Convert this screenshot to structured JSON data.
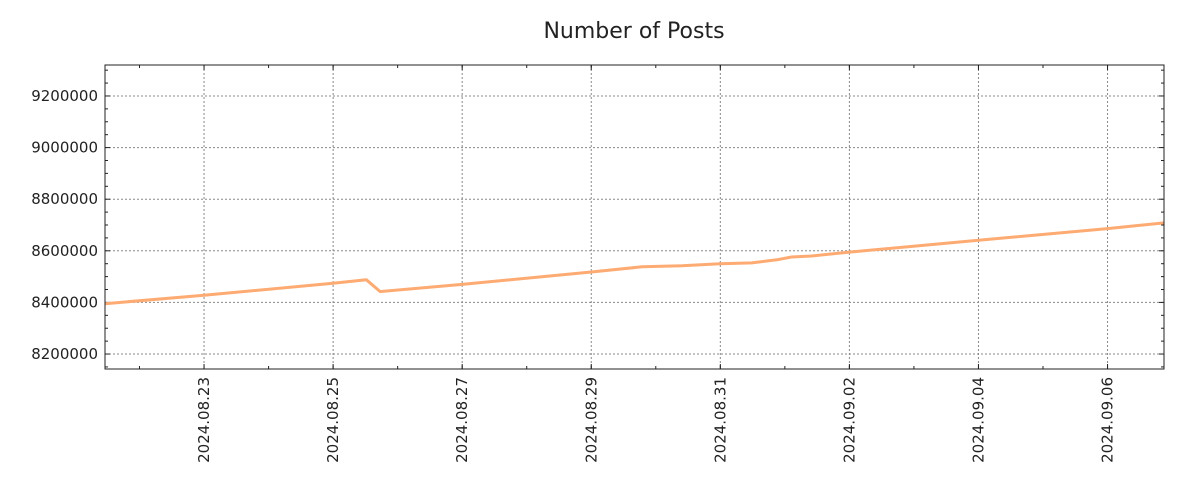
{
  "chart_data": {
    "type": "line",
    "title": "Number of Posts",
    "xlabel": "",
    "ylabel": "",
    "grid": true,
    "legend": "none",
    "line_color": "#fdab72",
    "xlim": [
      "2024-08-21T11:10",
      "2024-09-06T21:00"
    ],
    "ylim": [
      8142000,
      9320000
    ],
    "x_ticks": [
      {
        "label": "2024.08.23",
        "date": "2024-08-23T00:00"
      },
      {
        "label": "2024.08.25",
        "date": "2024-08-25T00:00"
      },
      {
        "label": "2024.08.27",
        "date": "2024-08-27T00:00"
      },
      {
        "label": "2024.08.29",
        "date": "2024-08-29T00:00"
      },
      {
        "label": "2024.08.31",
        "date": "2024-08-31T00:00"
      },
      {
        "label": "2024.09.02",
        "date": "2024-09-02T00:00"
      },
      {
        "label": "2024.09.04",
        "date": "2024-09-04T00:00"
      },
      {
        "label": "2024.09.06",
        "date": "2024-09-06T00:00"
      }
    ],
    "y_ticks": [
      8200000,
      8400000,
      8600000,
      8800000,
      9000000,
      9200000
    ],
    "series": [
      {
        "name": "Number of Posts",
        "points": [
          [
            "2024-08-21T11:10",
            8395000
          ],
          [
            "2024-08-23T00:00",
            8428000
          ],
          [
            "2024-08-25T00:00",
            8474000
          ],
          [
            "2024-08-25T12:20",
            8488000
          ],
          [
            "2024-08-25T17:30",
            8442000
          ],
          [
            "2024-08-27T00:00",
            8470000
          ],
          [
            "2024-08-29T00:00",
            8518000
          ],
          [
            "2024-08-29T19:00",
            8538000
          ],
          [
            "2024-08-30T09:40",
            8542000
          ],
          [
            "2024-08-31T00:00",
            8550000
          ],
          [
            "2024-08-31T11:40",
            8553000
          ],
          [
            "2024-08-31T21:00",
            8565000
          ],
          [
            "2024-09-01T02:30",
            8576000
          ],
          [
            "2024-09-01T09:55",
            8580000
          ],
          [
            "2024-09-02T00:00",
            8595000
          ],
          [
            "2024-09-04T00:00",
            8641000
          ],
          [
            "2024-09-06T00:00",
            8686000
          ],
          [
            "2024-09-06T21:00",
            8708000
          ]
        ]
      }
    ]
  }
}
